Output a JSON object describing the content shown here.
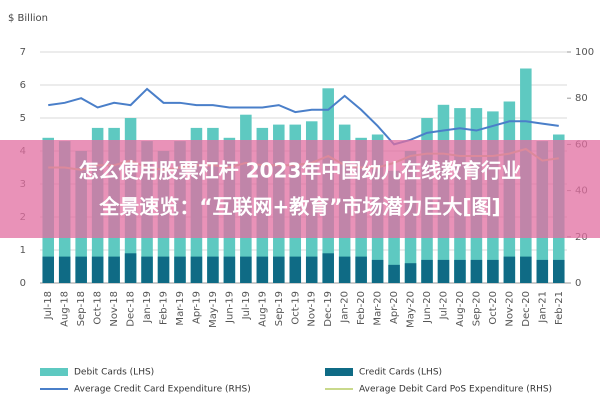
{
  "chart_data": {
    "type": "bar",
    "y_label": "$ Billion",
    "categories": [
      "Jul-18",
      "Aug-18",
      "Sep-18",
      "Oct-18",
      "Nov-18",
      "Dec-18",
      "Jan-19",
      "Feb-19",
      "Mar-19",
      "Apr-19",
      "May-19",
      "Jun-19",
      "Jul-19",
      "Aug-19",
      "Sep-19",
      "Oct-19",
      "Nov-19",
      "Dec-19",
      "Jan-20",
      "Feb-20",
      "Mar-20",
      "Apr-20",
      "May-20",
      "Jun-20",
      "Jul-20",
      "Aug-20",
      "Sep-20",
      "Oct-20",
      "Nov-20",
      "Dec-20",
      "Jan-21",
      "Feb-21"
    ],
    "series": [
      {
        "name": "Debit Cards (LHS)",
        "type": "bar",
        "color": "#5ec9c1",
        "values": [
          4.4,
          4.3,
          4.0,
          4.7,
          4.7,
          5.0,
          4.3,
          4.0,
          4.3,
          4.7,
          4.7,
          4.4,
          5.1,
          4.7,
          4.8,
          4.8,
          4.9,
          5.9,
          4.8,
          4.4,
          4.5,
          3.4,
          4.0,
          5.0,
          5.4,
          5.3,
          5.3,
          5.2,
          5.5,
          6.5,
          4.3,
          4.5
        ]
      },
      {
        "name": "Credit Cards (LHS)",
        "type": "bar",
        "color": "#0f6b85",
        "values": [
          0.8,
          0.8,
          0.8,
          0.8,
          0.8,
          0.9,
          0.8,
          0.8,
          0.8,
          0.8,
          0.8,
          0.8,
          0.8,
          0.8,
          0.8,
          0.8,
          0.8,
          0.9,
          0.8,
          0.8,
          0.7,
          0.55,
          0.6,
          0.7,
          0.7,
          0.7,
          0.7,
          0.7,
          0.8,
          0.8,
          0.7,
          0.7
        ]
      },
      {
        "name": "Average Credit Card Expenditure (RHS)",
        "type": "line",
        "axis": "y2",
        "color": "#4a7fc9",
        "values": [
          77,
          78,
          80,
          76,
          78,
          77,
          84,
          78,
          78,
          77,
          77,
          76,
          76,
          76,
          77,
          74,
          75,
          75,
          81,
          75,
          68,
          60,
          62,
          65,
          66,
          67,
          66,
          68,
          70,
          70,
          69,
          68
        ]
      },
      {
        "name": "Average Debit Card PoS Expenditure (RHS)",
        "type": "line",
        "axis": "y2",
        "color": "#c9d98c",
        "values": [
          50,
          50,
          49,
          51,
          51,
          53,
          50,
          49,
          50,
          51,
          51,
          50,
          52,
          51,
          51,
          51,
          52,
          55,
          51,
          50,
          50,
          52,
          55,
          56,
          56,
          55,
          55,
          55,
          56,
          58,
          53,
          54
        ]
      }
    ],
    "ylim": [
      0,
      7
    ],
    "yticks": [
      0,
      1,
      2,
      3,
      4,
      5,
      6,
      7
    ],
    "y2lim": [
      0,
      100
    ],
    "y2ticks": [
      0,
      20,
      40,
      60,
      80,
      100
    ],
    "grid": true
  },
  "overlay": {
    "lines": [
      "怎么使用股票杠杆 2023年中国幼儿在线教育行业",
      "全景速览：“互联网+教育”市场潜力巨大[图]"
    ]
  }
}
